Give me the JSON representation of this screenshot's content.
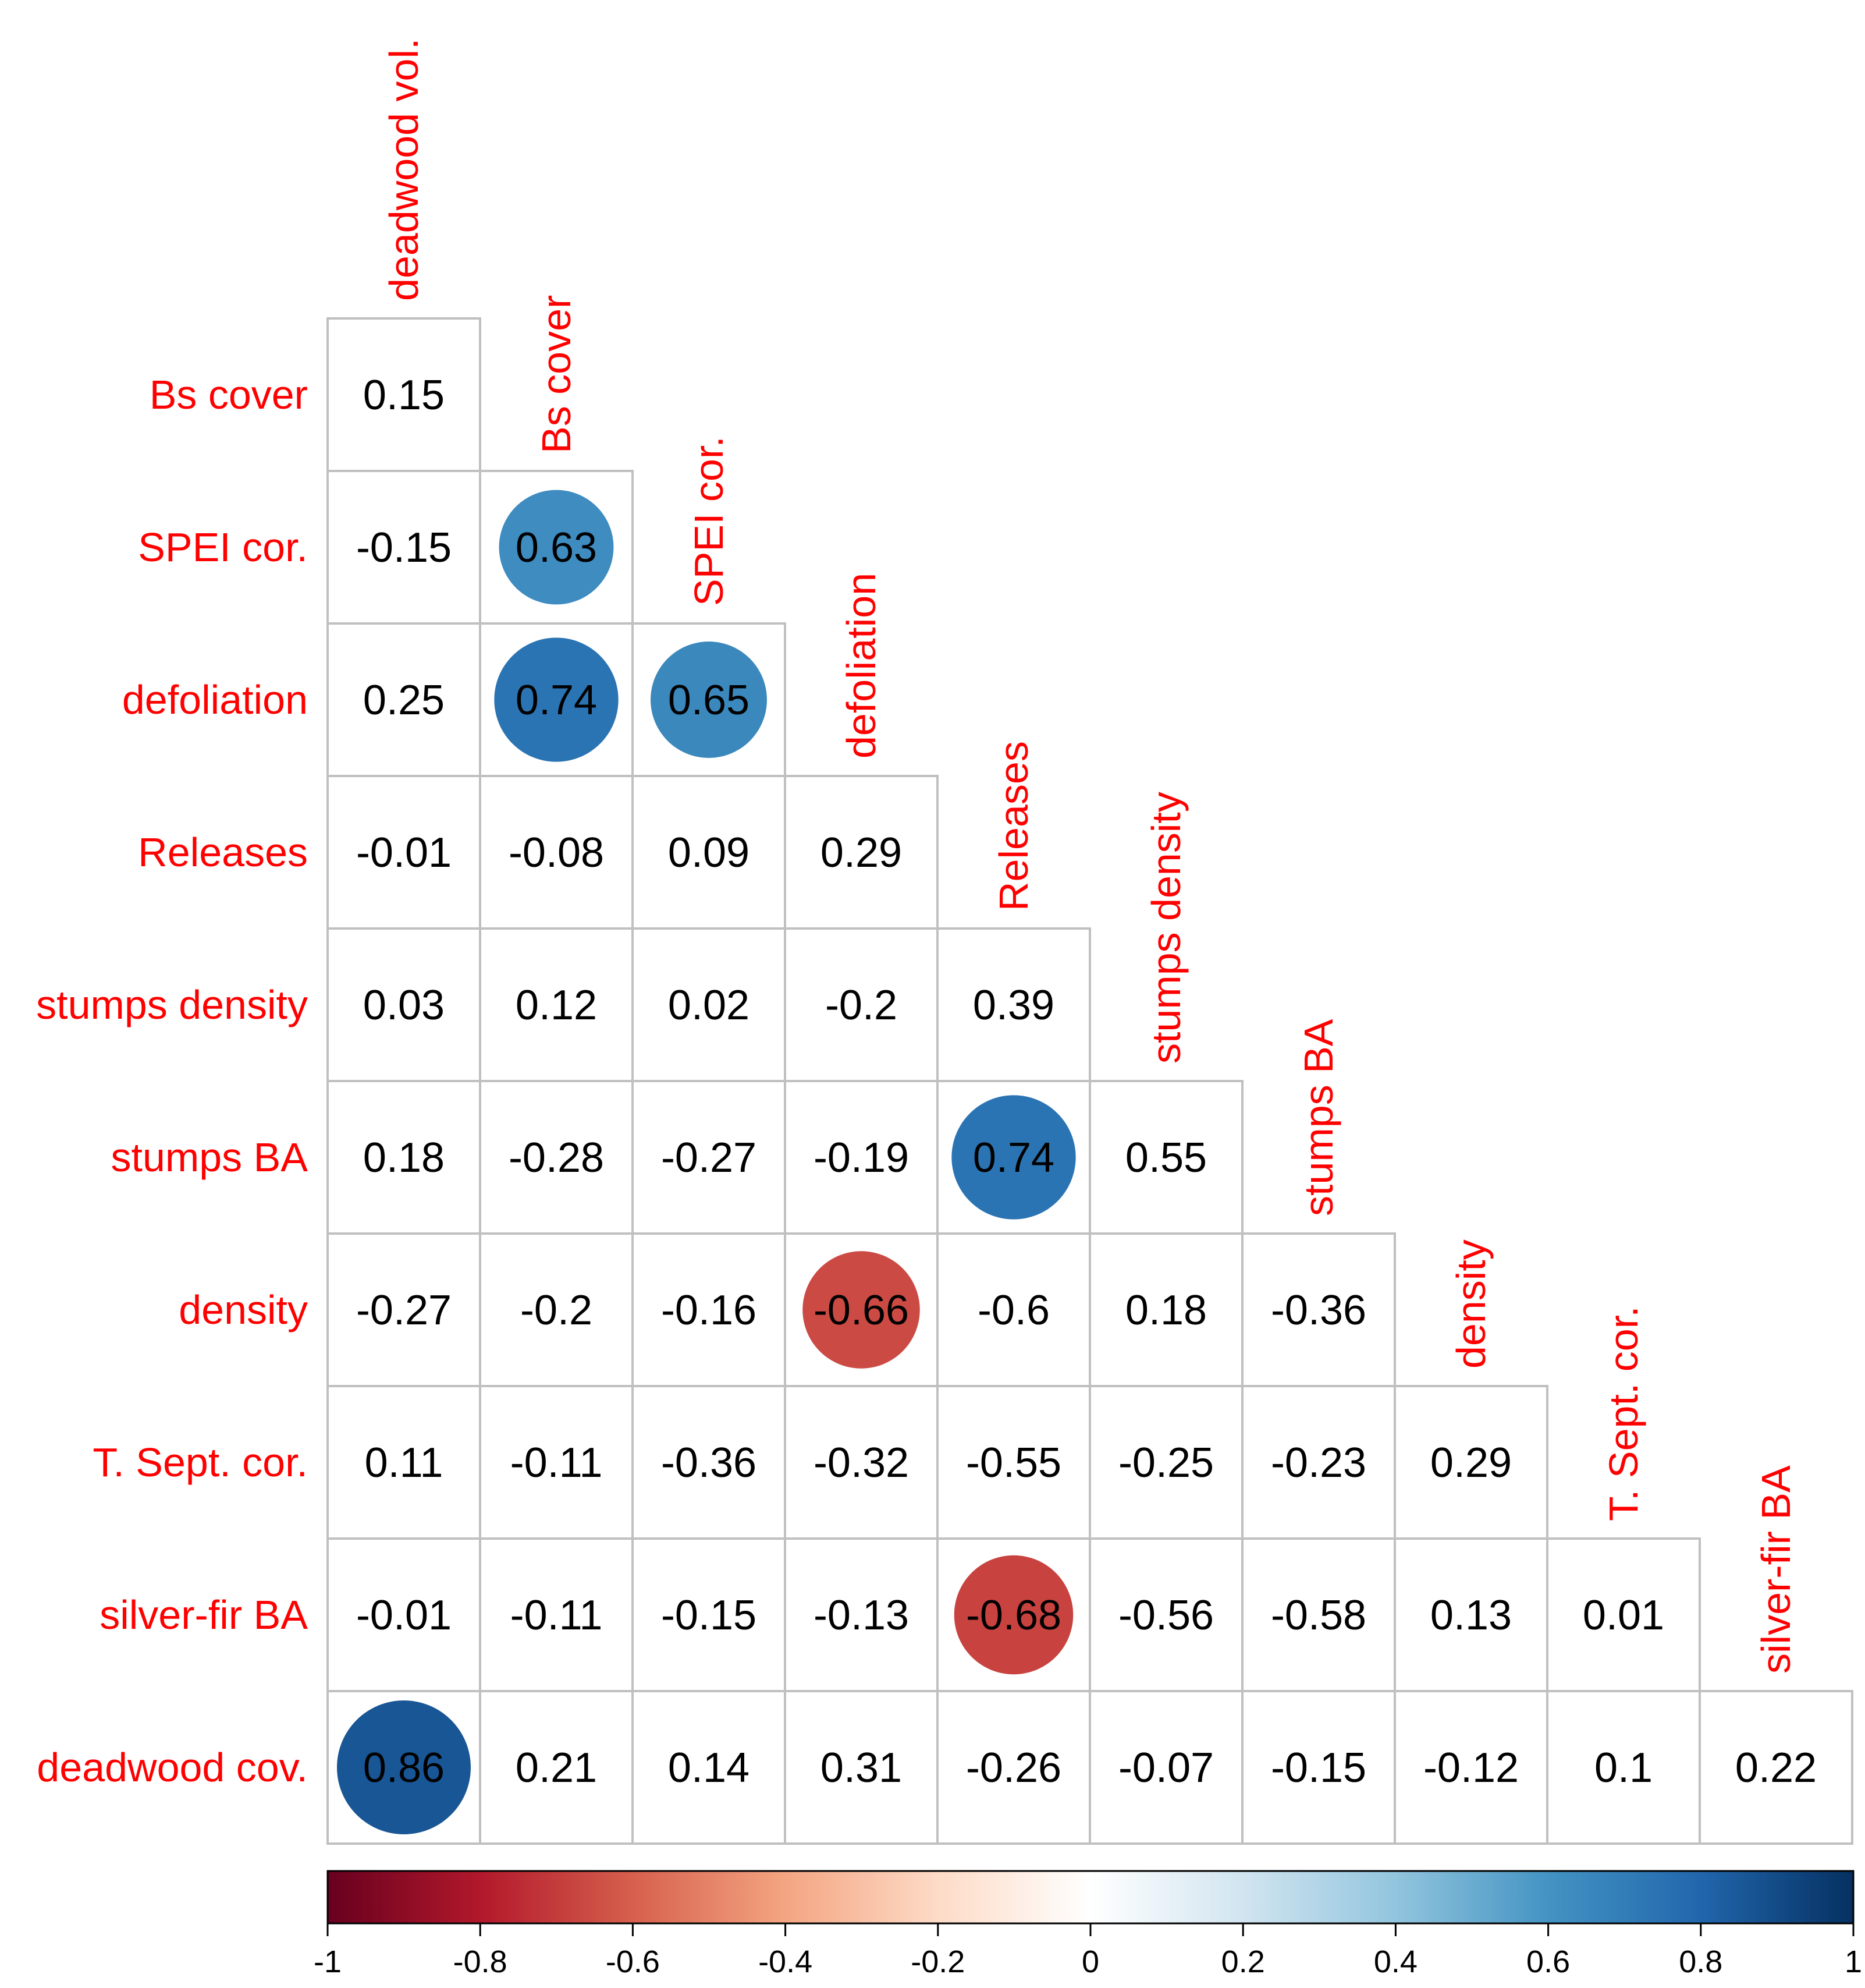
{
  "chart_data": {
    "type": "heatmap",
    "subtype": "correlation-lower-triangle",
    "variables": [
      "deadwood vol.",
      "Bs cover",
      "SPEI cor.",
      "defoliation",
      "Releases",
      "stumps density",
      "stumps BA",
      "density",
      "T. Sept. cor.",
      "silver-fir BA",
      "deadwood cov."
    ],
    "row_labels": [
      "Bs cover",
      "SPEI cor.",
      "defoliation",
      "Releases",
      "stumps density",
      "stumps BA",
      "density",
      "T. Sept. cor.",
      "silver-fir BA",
      "deadwood cov."
    ],
    "column_labels": [
      "deadwood vol.",
      "Bs cover",
      "SPEI cor.",
      "defoliation",
      "Releases",
      "stumps density",
      "stumps BA",
      "density",
      "T. Sept. cor.",
      "silver-fir BA"
    ],
    "values": [
      [
        0.15
      ],
      [
        -0.15,
        0.63
      ],
      [
        0.25,
        0.74,
        0.65
      ],
      [
        -0.01,
        -0.08,
        0.09,
        0.29
      ],
      [
        0.03,
        0.12,
        0.02,
        -0.2,
        0.39
      ],
      [
        0.18,
        -0.28,
        -0.27,
        -0.19,
        0.74,
        0.55
      ],
      [
        -0.27,
        -0.2,
        -0.16,
        -0.66,
        -0.6,
        0.18,
        -0.36
      ],
      [
        0.11,
        -0.11,
        -0.36,
        -0.32,
        -0.55,
        -0.25,
        -0.23,
        0.29
      ],
      [
        -0.01,
        -0.11,
        -0.15,
        -0.13,
        -0.68,
        -0.56,
        -0.58,
        0.13,
        0.01
      ],
      [
        0.86,
        0.21,
        0.14,
        0.31,
        -0.26,
        -0.07,
        -0.15,
        -0.12,
        0.1,
        0.22
      ]
    ],
    "significant_cells": [
      [
        1,
        1
      ],
      [
        2,
        1
      ],
      [
        2,
        2
      ],
      [
        5,
        4
      ],
      [
        6,
        3
      ],
      [
        8,
        4
      ],
      [
        9,
        0
      ]
    ],
    "colorbar": {
      "range": [
        -1,
        1
      ],
      "ticks": [
        -1,
        -0.8,
        -0.6,
        -0.4,
        -0.2,
        0,
        0.2,
        0.4,
        0.6,
        0.8,
        1
      ],
      "tick_labels": [
        "-1",
        "-0.8",
        "-0.6",
        "-0.4",
        "-0.2",
        "0",
        "0.2",
        "0.4",
        "0.6",
        "0.8",
        "1"
      ],
      "colors": [
        "#67001F",
        "#B2182B",
        "#D6604D",
        "#F4A582",
        "#FDDBC7",
        "#FFFFFF",
        "#D1E5F0",
        "#92C5DE",
        "#4393C3",
        "#2166AC",
        "#053061"
      ]
    },
    "label_color": "#FF0000",
    "grid_color": "#C0C0C0"
  }
}
